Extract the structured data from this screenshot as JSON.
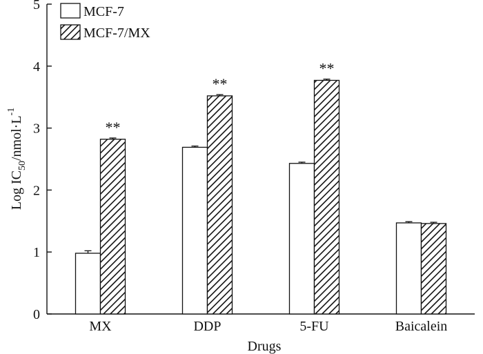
{
  "chart_data": {
    "type": "bar",
    "title": "",
    "xlabel": "Drugs",
    "ylabel": {
      "prefix": "Log IC",
      "subscript": "50",
      "suffix": "/nmol·L",
      "superscript": "-1"
    },
    "ylim": [
      0,
      5
    ],
    "yticks": [
      "0",
      "1",
      "2",
      "3",
      "4",
      "5"
    ],
    "categories": [
      "MX",
      "DDP",
      "5-FU",
      "Baicalein"
    ],
    "series": [
      {
        "name": "MCF-7",
        "fill": "white",
        "values": [
          0.98,
          2.69,
          2.43,
          1.47
        ],
        "errors": [
          0.04,
          0.02,
          0.02,
          0.02
        ]
      },
      {
        "name": "MCF-7/MX",
        "fill": "hatched",
        "values": [
          2.82,
          3.52,
          3.77,
          1.46
        ],
        "errors": [
          0.02,
          0.02,
          0.02,
          0.02
        ]
      }
    ],
    "annotations": [
      "**",
      "**",
      "**",
      ""
    ],
    "legend_position": "top-left",
    "grid": false,
    "colors": {
      "stroke": "#111111",
      "background": "#ffffff"
    }
  }
}
